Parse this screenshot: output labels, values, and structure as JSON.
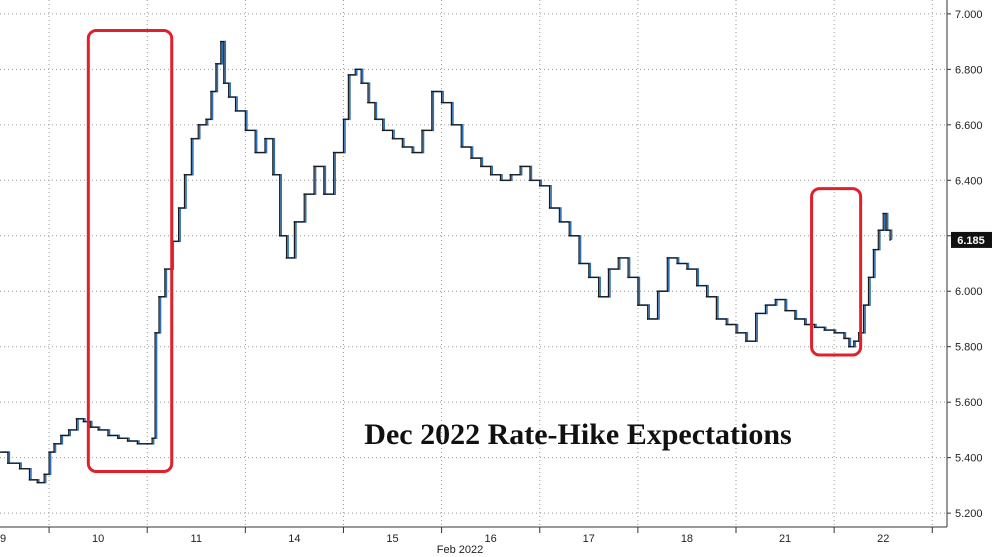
{
  "chart_data": {
    "type": "line",
    "title": "Dec 2022 Rate-Hike Expectations",
    "xlabel": "Feb 2022",
    "ylabel": "",
    "ylim": [
      5.15,
      7.05
    ],
    "y_ticks": [
      "5.200",
      "5.400",
      "5.600",
      "5.800",
      "6.000",
      "6.200",
      "6.400",
      "6.600",
      "6.800",
      "7.000"
    ],
    "x_ticks": [
      "09",
      "10",
      "11",
      "14",
      "15",
      "16",
      "17",
      "18",
      "21",
      "22"
    ],
    "last_value": "6.185",
    "grid": true,
    "colors": {
      "primary_line": "#1a1a1a",
      "secondary_line": "#2e6fb5",
      "highlight_box": "#e0202a",
      "last_value_badge": "#111111"
    },
    "series": [
      {
        "values": [
          [
            0.0,
            5.42
          ],
          [
            0.08,
            5.38
          ],
          [
            0.2,
            5.36
          ],
          [
            0.3,
            5.32
          ],
          [
            0.38,
            5.31
          ],
          [
            0.45,
            5.34
          ],
          [
            0.5,
            5.42
          ],
          [
            0.55,
            5.45
          ],
          [
            0.62,
            5.48
          ],
          [
            0.7,
            5.5
          ],
          [
            0.78,
            5.54
          ],
          [
            0.85,
            5.53
          ],
          [
            0.92,
            5.51
          ],
          [
            1.0,
            5.5
          ],
          [
            1.1,
            5.48
          ],
          [
            1.2,
            5.47
          ],
          [
            1.3,
            5.46
          ],
          [
            1.4,
            5.45
          ],
          [
            1.5,
            5.45
          ],
          [
            1.55,
            5.47
          ],
          [
            1.58,
            5.85
          ],
          [
            1.62,
            5.98
          ],
          [
            1.68,
            6.08
          ],
          [
            1.75,
            6.18
          ],
          [
            1.82,
            6.3
          ],
          [
            1.88,
            6.42
          ],
          [
            1.95,
            6.55
          ],
          [
            2.02,
            6.6
          ],
          [
            2.1,
            6.62
          ],
          [
            2.15,
            6.72
          ],
          [
            2.2,
            6.82
          ],
          [
            2.25,
            6.9
          ],
          [
            2.28,
            6.75
          ],
          [
            2.33,
            6.7
          ],
          [
            2.4,
            6.65
          ],
          [
            2.5,
            6.58
          ],
          [
            2.6,
            6.5
          ],
          [
            2.7,
            6.55
          ],
          [
            2.78,
            6.42
          ],
          [
            2.85,
            6.2
          ],
          [
            2.92,
            6.12
          ],
          [
            3.0,
            6.25
          ],
          [
            3.1,
            6.35
          ],
          [
            3.2,
            6.45
          ],
          [
            3.3,
            6.35
          ],
          [
            3.4,
            6.5
          ],
          [
            3.5,
            6.62
          ],
          [
            3.55,
            6.78
          ],
          [
            3.62,
            6.8
          ],
          [
            3.68,
            6.75
          ],
          [
            3.75,
            6.68
          ],
          [
            3.82,
            6.62
          ],
          [
            3.9,
            6.58
          ],
          [
            4.0,
            6.55
          ],
          [
            4.1,
            6.52
          ],
          [
            4.2,
            6.5
          ],
          [
            4.3,
            6.58
          ],
          [
            4.4,
            6.72
          ],
          [
            4.5,
            6.68
          ],
          [
            4.6,
            6.6
          ],
          [
            4.7,
            6.52
          ],
          [
            4.8,
            6.48
          ],
          [
            4.9,
            6.45
          ],
          [
            5.0,
            6.42
          ],
          [
            5.1,
            6.4
          ],
          [
            5.2,
            6.42
          ],
          [
            5.3,
            6.45
          ],
          [
            5.4,
            6.4
          ],
          [
            5.5,
            6.38
          ],
          [
            5.6,
            6.3
          ],
          [
            5.7,
            6.25
          ],
          [
            5.8,
            6.2
          ],
          [
            5.9,
            6.1
          ],
          [
            6.0,
            6.05
          ],
          [
            6.1,
            5.98
          ],
          [
            6.2,
            6.08
          ],
          [
            6.3,
            6.12
          ],
          [
            6.4,
            6.05
          ],
          [
            6.5,
            5.95
          ],
          [
            6.6,
            5.9
          ],
          [
            6.7,
            6.0
          ],
          [
            6.8,
            6.12
          ],
          [
            6.9,
            6.1
          ],
          [
            7.0,
            6.08
          ],
          [
            7.1,
            6.02
          ],
          [
            7.2,
            5.98
          ],
          [
            7.3,
            5.9
          ],
          [
            7.4,
            5.88
          ],
          [
            7.5,
            5.85
          ],
          [
            7.6,
            5.82
          ],
          [
            7.7,
            5.92
          ],
          [
            7.8,
            5.95
          ],
          [
            7.9,
            5.97
          ],
          [
            8.0,
            5.93
          ],
          [
            8.1,
            5.9
          ],
          [
            8.2,
            5.88
          ],
          [
            8.3,
            5.87
          ],
          [
            8.4,
            5.86
          ],
          [
            8.5,
            5.85
          ],
          [
            8.6,
            5.83
          ],
          [
            8.65,
            5.8
          ],
          [
            8.7,
            5.82
          ],
          [
            8.75,
            5.85
          ],
          [
            8.8,
            5.95
          ],
          [
            8.85,
            6.05
          ],
          [
            8.9,
            6.15
          ],
          [
            8.95,
            6.22
          ],
          [
            9.0,
            6.28
          ],
          [
            9.03,
            6.22
          ],
          [
            9.07,
            6.185
          ]
        ]
      }
    ]
  },
  "annotations": {
    "highlight_boxes": [
      {
        "x_start": 0.9,
        "x_end": 1.75,
        "y_low": 5.35,
        "y_high": 6.94
      },
      {
        "x_start": 8.27,
        "x_end": 8.77,
        "y_low": 5.77,
        "y_high": 6.37
      }
    ]
  }
}
